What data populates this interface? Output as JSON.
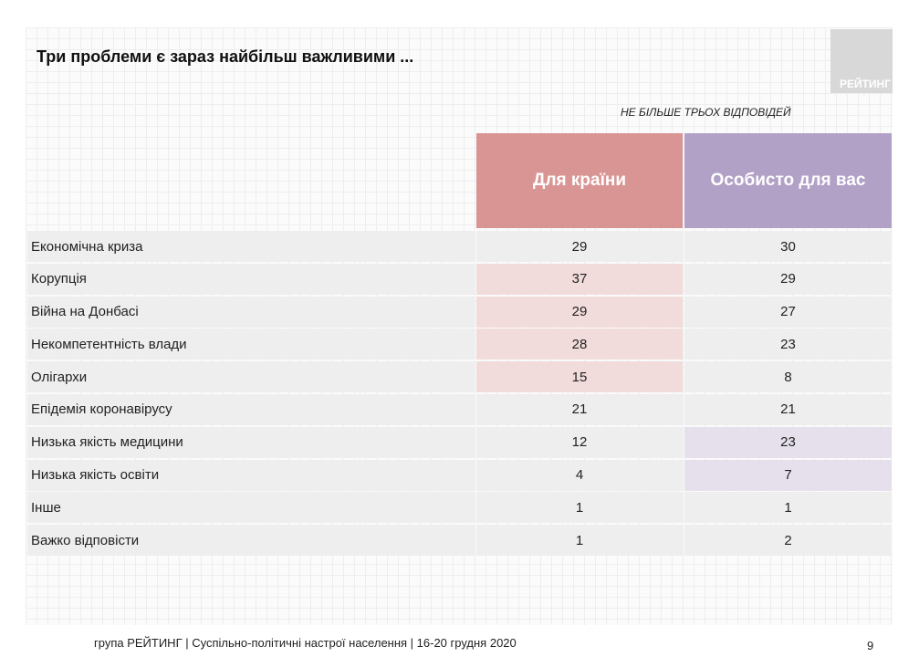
{
  "title": "Три проблеми є зараз найбільш важливими ...",
  "logo_text": "РЕЙТИНГ",
  "note": "НЕ БІЛЬШЕ ТРЬОХ ВІДПОВІДЕЙ",
  "columns": [
    "Для країни",
    "Особисто для вас"
  ],
  "colors": {
    "country_header": "#d99594",
    "personal_header": "#b2a1c7",
    "country_highlight": "#f2dcdb",
    "personal_highlight": "#e5e0ec"
  },
  "rows": [
    {
      "label": "Економічна криза",
      "country": "29",
      "personal": "30",
      "hl": ""
    },
    {
      "label": "Корупція",
      "country": "37",
      "personal": "29",
      "hl": "country"
    },
    {
      "label": "Війна на Донбасі",
      "country": "29",
      "personal": "27",
      "hl": "country"
    },
    {
      "label": "Некомпетентність влади",
      "country": "28",
      "personal": "23",
      "hl": "country"
    },
    {
      "label": "Олігархи",
      "country": "15",
      "personal": "8",
      "hl": "country"
    },
    {
      "label": "Епідемія коронавірусу",
      "country": "21",
      "personal": "21",
      "hl": ""
    },
    {
      "label": "Низька якість медицини",
      "country": "12",
      "personal": "23",
      "hl": "personal"
    },
    {
      "label": "Низька якість освіти",
      "country": "4",
      "personal": "7",
      "hl": "personal"
    },
    {
      "label": "Інше",
      "country": "1",
      "personal": "1",
      "hl": ""
    },
    {
      "label": "Важко відповісти",
      "country": "1",
      "personal": "2",
      "hl": ""
    }
  ],
  "footer": "група РЕЙТИНГ | Суспільно-політичні настрої населення | 16-20 грудня 2020",
  "page_number": "9"
}
